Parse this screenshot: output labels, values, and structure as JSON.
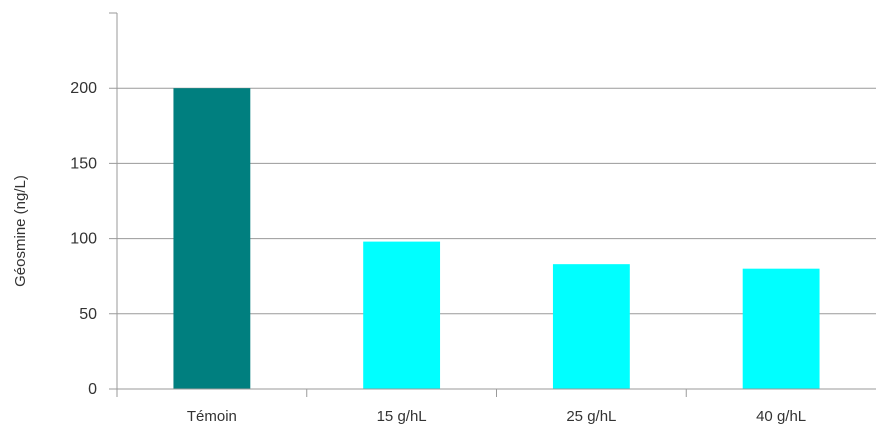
{
  "chart_data": {
    "type": "bar",
    "title": "",
    "xlabel": "",
    "ylabel": "Géosmine (ng/L)",
    "categories": [
      "Témoin",
      "15 g/hL",
      "25 g/hL",
      "40 g/hL"
    ],
    "values": [
      200,
      98,
      83,
      80
    ],
    "bar_colors": [
      "#007f7f",
      "#00ffff",
      "#00ffff",
      "#00ffff"
    ],
    "ylim": [
      0,
      250
    ],
    "yticks": [
      0,
      50,
      100,
      150,
      200
    ],
    "grid": true,
    "legend": "none"
  }
}
